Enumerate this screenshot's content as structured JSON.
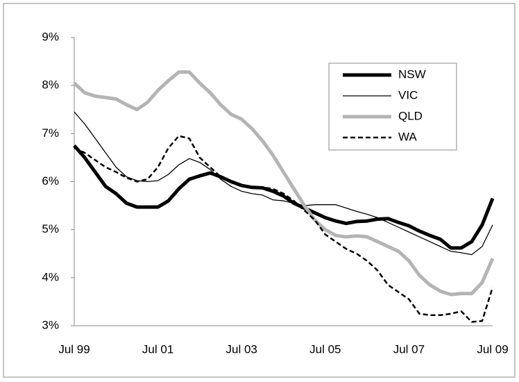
{
  "chart_data": {
    "type": "line",
    "categories": [
      "Jul 99",
      null,
      null,
      null,
      null,
      null,
      null,
      null,
      "Jul 01",
      null,
      null,
      null,
      null,
      null,
      null,
      null,
      "Jul 03",
      null,
      null,
      null,
      null,
      null,
      null,
      null,
      "Jul 05",
      null,
      null,
      null,
      null,
      null,
      null,
      null,
      "Jul 07",
      null,
      null,
      null,
      null,
      null,
      null,
      null,
      "Jul 09"
    ],
    "ylim": [
      3,
      9
    ],
    "yticks": [
      {
        "value": 3,
        "label": "3%"
      },
      {
        "value": 4,
        "label": "4%"
      },
      {
        "value": 5,
        "label": "5%"
      },
      {
        "value": 6,
        "label": "6%"
      },
      {
        "value": 7,
        "label": "7%"
      },
      {
        "value": 8,
        "label": "8%"
      },
      {
        "value": 9,
        "label": "9%"
      }
    ],
    "grid": false,
    "legend": "upper right",
    "series": [
      {
        "name": "NSW",
        "color": "#000000",
        "width": 5,
        "dashed": false,
        "values": [
          6.75,
          6.5,
          6.2,
          5.9,
          5.75,
          5.55,
          5.47,
          5.47,
          5.47,
          5.6,
          5.85,
          6.05,
          6.12,
          6.18,
          6.1,
          6.0,
          5.92,
          5.88,
          5.87,
          5.8,
          5.7,
          5.55,
          5.45,
          5.35,
          5.25,
          5.18,
          5.13,
          5.17,
          5.18,
          5.22,
          5.23,
          5.15,
          5.08,
          4.97,
          4.88,
          4.8,
          4.62,
          4.62,
          4.75,
          5.1,
          5.65
        ]
      },
      {
        "name": "VIC",
        "color": "#000000",
        "width": 1.3,
        "dashed": false,
        "values": [
          7.45,
          7.2,
          6.9,
          6.6,
          6.3,
          6.1,
          6.02,
          6.0,
          6.02,
          6.15,
          6.35,
          6.48,
          6.4,
          6.25,
          6.05,
          5.9,
          5.8,
          5.75,
          5.72,
          5.62,
          5.6,
          5.55,
          5.5,
          5.52,
          5.52,
          5.52,
          5.45,
          5.38,
          5.32,
          5.25,
          5.15,
          5.05,
          4.95,
          4.85,
          4.75,
          4.65,
          4.55,
          4.52,
          4.48,
          4.65,
          5.1
        ]
      },
      {
        "name": "QLD",
        "color": "#b4b4b4",
        "width": 5,
        "dashed": false,
        "values": [
          8.05,
          7.85,
          7.78,
          7.75,
          7.72,
          7.6,
          7.5,
          7.65,
          7.9,
          8.1,
          8.28,
          8.28,
          8.05,
          7.85,
          7.6,
          7.4,
          7.3,
          7.1,
          6.85,
          6.55,
          6.2,
          5.85,
          5.5,
          5.2,
          5.0,
          4.88,
          4.85,
          4.87,
          4.85,
          4.75,
          4.65,
          4.55,
          4.35,
          4.05,
          3.85,
          3.72,
          3.65,
          3.67,
          3.67,
          3.9,
          4.4
        ]
      },
      {
        "name": "WA",
        "color": "#000000",
        "width": 2.5,
        "dashed": true,
        "values": [
          6.7,
          6.6,
          6.45,
          6.3,
          6.2,
          6.08,
          6.0,
          6.05,
          6.3,
          6.7,
          6.95,
          6.9,
          6.5,
          6.3,
          6.1,
          5.98,
          5.9,
          5.88,
          5.88,
          5.85,
          5.75,
          5.6,
          5.4,
          5.2,
          4.9,
          4.75,
          4.6,
          4.5,
          4.35,
          4.15,
          3.85,
          3.7,
          3.55,
          3.25,
          3.22,
          3.22,
          3.25,
          3.3,
          3.08,
          3.1,
          3.8
        ]
      }
    ]
  }
}
